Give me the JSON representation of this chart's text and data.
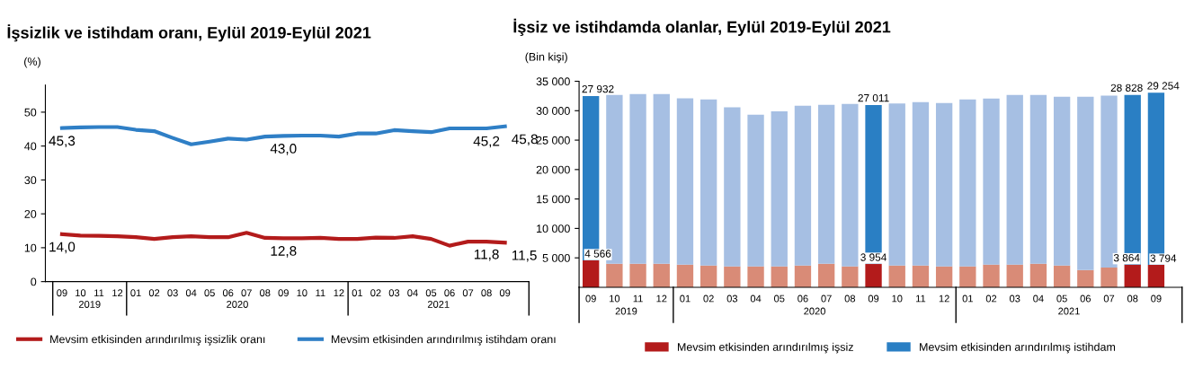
{
  "chart_data": [
    {
      "type": "line",
      "title": "İşsizlik ve istihdam oranı, Eylül 2019-Eylül 2021",
      "ylabel": "(%)",
      "categories": [
        "09",
        "10",
        "11",
        "12",
        "01",
        "02",
        "03",
        "04",
        "05",
        "06",
        "07",
        "08",
        "09",
        "10",
        "11",
        "12",
        "01",
        "02",
        "03",
        "04",
        "05",
        "06",
        "07",
        "08",
        "09"
      ],
      "annotations": [
        "2019",
        "2020",
        "2021"
      ],
      "ylim": [
        0,
        58
      ],
      "yticks": [
        0,
        10,
        20,
        30,
        40,
        50
      ],
      "grid": false,
      "legend": "bottom",
      "line_style": "solid",
      "series": [
        {
          "name": "Mevsim etkisinden arındırılmış işsizlik oranı",
          "color": "#b31b1b",
          "values": [
            14.0,
            13.6,
            13.5,
            13.4,
            13.1,
            12.6,
            13.1,
            13.4,
            13.1,
            13.1,
            14.4,
            12.9,
            12.8,
            12.8,
            12.9,
            12.6,
            12.6,
            13.0,
            12.9,
            13.4,
            12.6,
            10.6,
            11.8,
            11.8,
            11.5
          ],
          "value_labels": [
            "14,0",
            null,
            null,
            null,
            null,
            null,
            null,
            null,
            null,
            null,
            null,
            null,
            "12,8",
            null,
            null,
            null,
            null,
            null,
            null,
            null,
            null,
            null,
            null,
            "11,8",
            "11,5"
          ]
        },
        {
          "name": "Mevsim etkisinden arındırılmış istihdam oranı",
          "color": "#2f7fc6",
          "values": [
            45.3,
            45.5,
            45.6,
            45.6,
            44.8,
            44.4,
            42.4,
            40.5,
            41.3,
            42.2,
            41.9,
            42.8,
            43.0,
            43.1,
            43.1,
            42.8,
            43.7,
            43.7,
            44.7,
            44.4,
            44.1,
            45.2,
            45.2,
            45.2,
            45.8
          ],
          "value_labels": [
            "45,3",
            null,
            null,
            null,
            null,
            null,
            null,
            null,
            null,
            null,
            null,
            null,
            "43,0",
            null,
            null,
            null,
            null,
            null,
            null,
            null,
            null,
            null,
            null,
            "45,2",
            "45,8"
          ]
        }
      ]
    },
    {
      "type": "bar",
      "stacked": true,
      "title": "İşsiz ve istihdamda olanlar, Eylül 2019-Eylül 2021",
      "ylabel": "(Bin kişi)",
      "categories": [
        "09",
        "10",
        "11",
        "12",
        "01",
        "02",
        "03",
        "04",
        "05",
        "06",
        "07",
        "08",
        "09",
        "10",
        "11",
        "12",
        "01",
        "02",
        "03",
        "04",
        "05",
        "06",
        "07",
        "08",
        "09"
      ],
      "annotations": [
        "2019",
        "2020",
        "2021"
      ],
      "ylim": [
        0,
        35000
      ],
      "yticks": [
        {
          "value": 5000,
          "label": "5 000"
        },
        {
          "value": 10000,
          "label": "10 000"
        },
        {
          "value": 15000,
          "label": "15 000"
        },
        {
          "value": 20000,
          "label": "20 000"
        },
        {
          "value": 25000,
          "label": "25 000"
        },
        {
          "value": 30000,
          "label": "30 000"
        },
        {
          "value": 35000,
          "label": "35 000"
        }
      ],
      "grid": false,
      "legend": "bottom",
      "series": [
        {
          "name": "Mevsim etkisinden arındırılmış işsiz",
          "color": "#b31b1b",
          "values": [
            4566,
            4000,
            4000,
            4000,
            3860,
            3700,
            3550,
            3550,
            3550,
            3700,
            4000,
            3550,
            3954,
            3700,
            3700,
            3550,
            3550,
            3860,
            3860,
            4010,
            3700,
            2930,
            3350,
            3864,
            3794
          ],
          "colors": [
            "#b31b1b",
            "#d98b77",
            "#d98b77",
            "#d98b77",
            "#d98b77",
            "#d98b77",
            "#d98b77",
            "#d98b77",
            "#d98b77",
            "#d98b77",
            "#d98b77",
            "#d98b77",
            "#b31b1b",
            "#d98b77",
            "#d98b77",
            "#d98b77",
            "#d98b77",
            "#d98b77",
            "#d98b77",
            "#d98b77",
            "#d98b77",
            "#d98b77",
            "#d98b77",
            "#b31b1b",
            "#b31b1b"
          ],
          "value_labels": [
            "4 566",
            null,
            null,
            null,
            null,
            null,
            null,
            null,
            null,
            null,
            null,
            null,
            "3 954",
            null,
            null,
            null,
            null,
            null,
            null,
            null,
            null,
            null,
            null,
            "3 864",
            "3 794"
          ]
        },
        {
          "name": "Mevsim etkisinden arındırılmış istihdam",
          "color": "#2a7fc4",
          "values": [
            27932,
            28680,
            28830,
            28830,
            28250,
            28200,
            27020,
            25780,
            26350,
            27130,
            26980,
            27590,
            27011,
            27540,
            27750,
            27740,
            28360,
            28200,
            28820,
            28670,
            28670,
            29440,
            29200,
            28828,
            29254
          ],
          "colors": [
            "#2a7fc4",
            "#a6bfe3",
            "#a6bfe3",
            "#a6bfe3",
            "#a6bfe3",
            "#a6bfe3",
            "#a6bfe3",
            "#a6bfe3",
            "#a6bfe3",
            "#a6bfe3",
            "#a6bfe3",
            "#a6bfe3",
            "#2a7fc4",
            "#a6bfe3",
            "#a6bfe3",
            "#a6bfe3",
            "#a6bfe3",
            "#a6bfe3",
            "#a6bfe3",
            "#a6bfe3",
            "#a6bfe3",
            "#a6bfe3",
            "#a6bfe3",
            "#2a7fc4",
            "#2a7fc4"
          ],
          "value_labels": [
            "27 932",
            null,
            null,
            null,
            null,
            null,
            null,
            null,
            null,
            null,
            null,
            null,
            "27 011",
            null,
            null,
            null,
            null,
            null,
            null,
            null,
            null,
            null,
            null,
            "28 828",
            "29 254"
          ]
        }
      ]
    }
  ]
}
